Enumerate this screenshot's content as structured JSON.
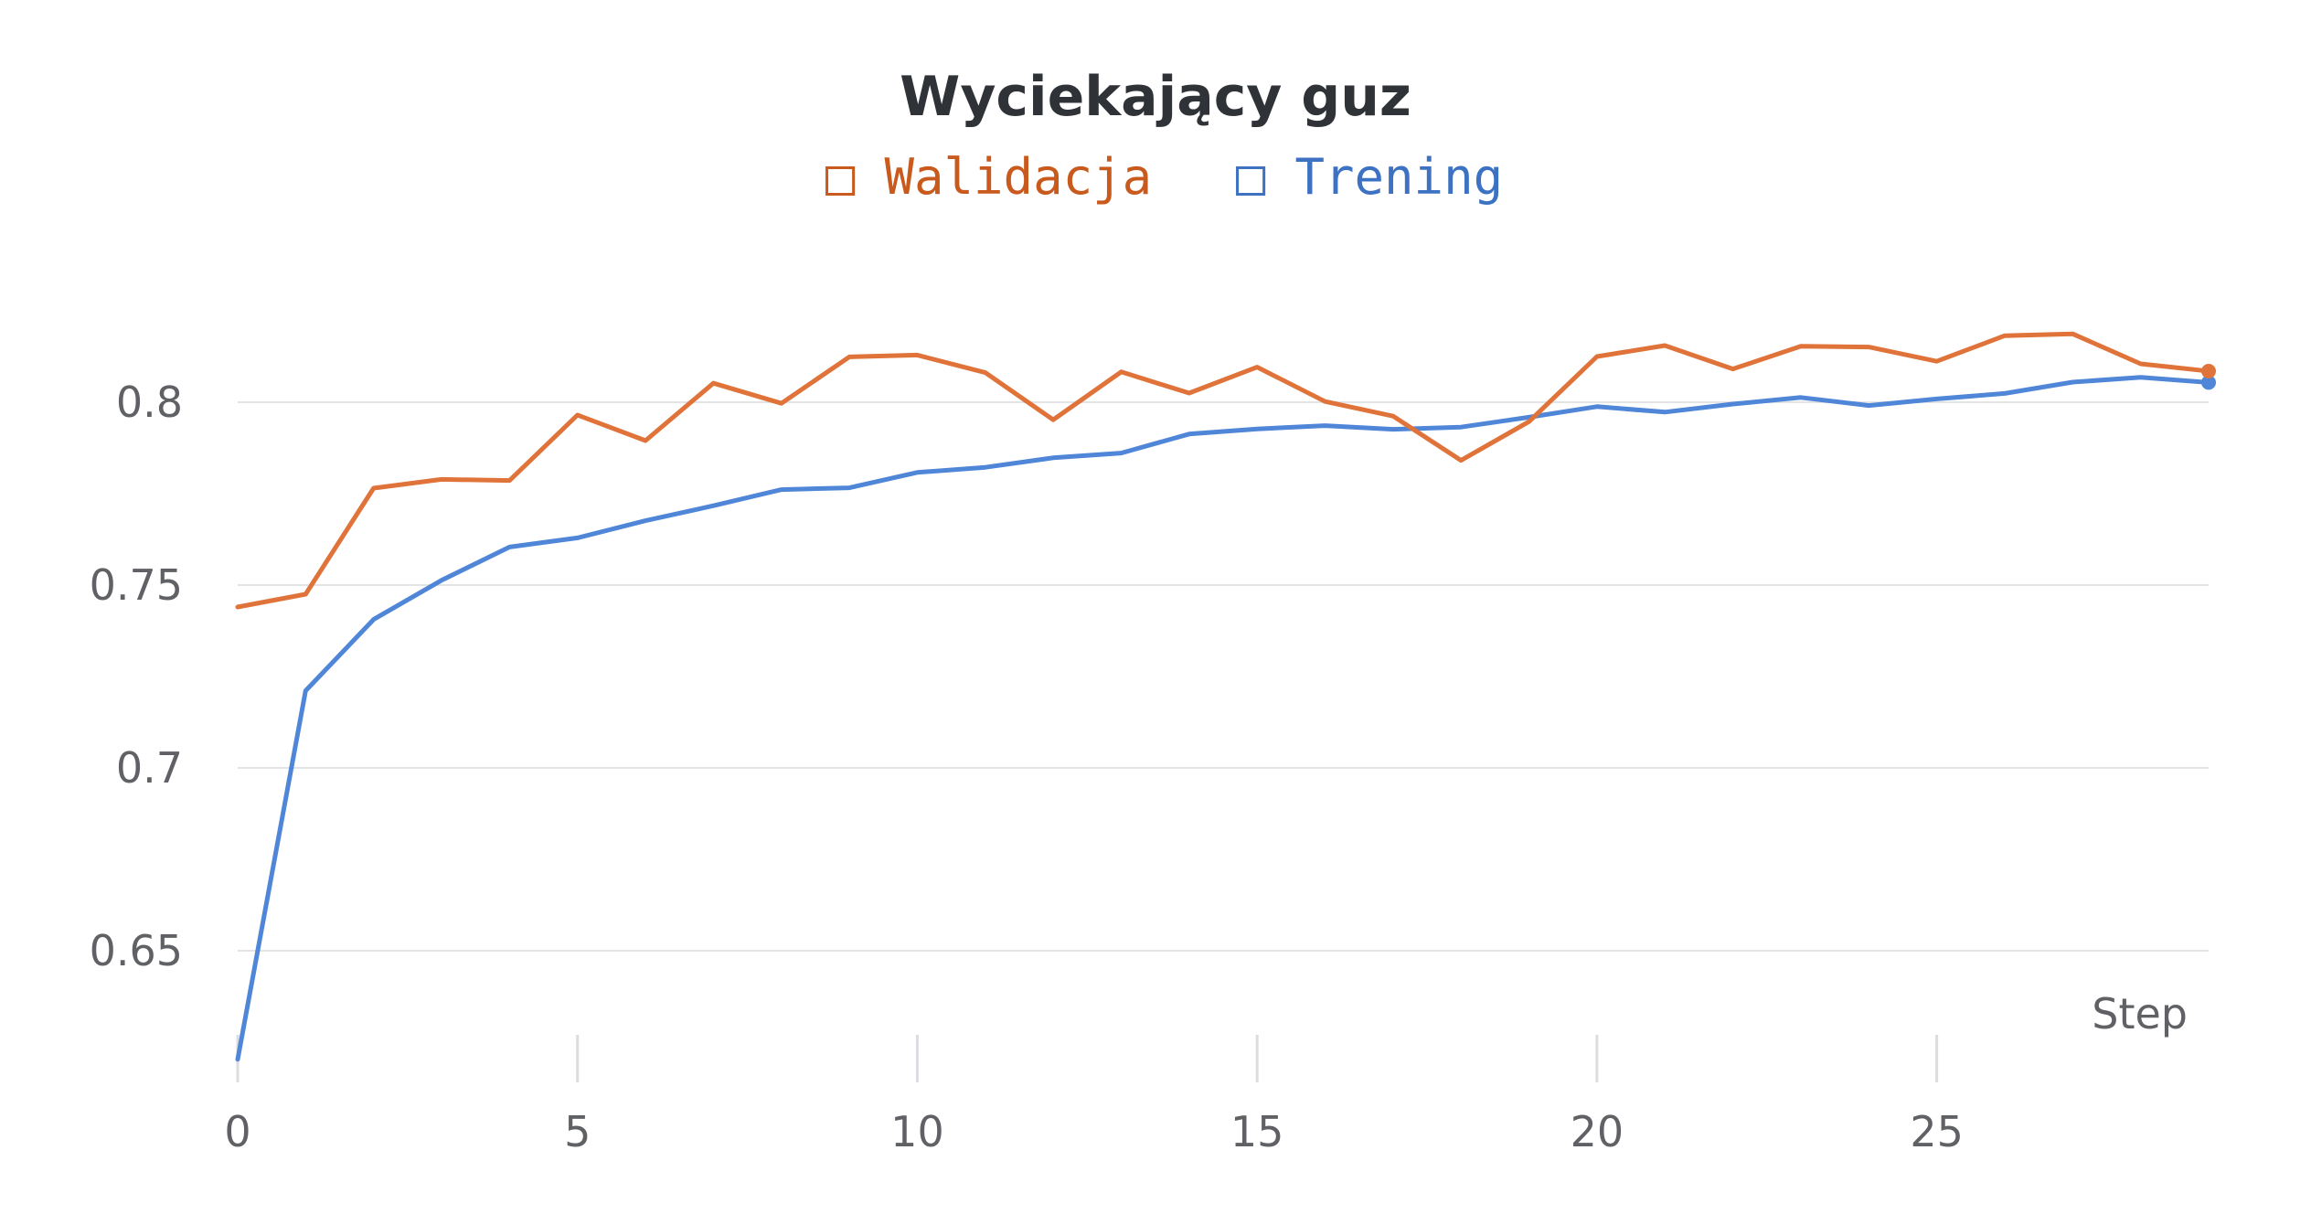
{
  "chart_data": {
    "type": "line",
    "title": "Wyciekający guz",
    "xlabel": "Step",
    "ylabel": "",
    "xlim": [
      0,
      29
    ],
    "ylim": [
      0.618,
      0.835
    ],
    "x_ticks": [
      0,
      5,
      10,
      15,
      20,
      25
    ],
    "x_tick_labels": [
      "0",
      "5",
      "10",
      "15",
      "20",
      "25"
    ],
    "y_ticks": [
      0.65,
      0.7,
      0.75,
      0.8
    ],
    "y_tick_labels": [
      "0.65",
      "0.7",
      "0.75",
      "0.8"
    ],
    "grid": "horizontal",
    "legend": {
      "placement": "top-center",
      "marker": "□"
    },
    "x": [
      0,
      1,
      2,
      3,
      4,
      5,
      6,
      7,
      8,
      9,
      10,
      11,
      12,
      13,
      14,
      15,
      16,
      17,
      18,
      19,
      20,
      21,
      22,
      23,
      24,
      25,
      26,
      27,
      28,
      29
    ],
    "series": [
      {
        "name": "Walidacja",
        "color": "#e07339",
        "label_color": "#c95a1e",
        "values": [
          0.744,
          0.7475,
          0.7765,
          0.7789,
          0.7786,
          0.7965,
          0.7895,
          0.8052,
          0.7997,
          0.8124,
          0.8129,
          0.8081,
          0.7952,
          0.8083,
          0.8025,
          0.8096,
          0.8002,
          0.7962,
          0.7841,
          0.7947,
          0.8125,
          0.8155,
          0.8091,
          0.8153,
          0.8151,
          0.8112,
          0.8182,
          0.8187,
          0.8105,
          0.8085
        ]
      },
      {
        "name": "Trening",
        "color": "#4f86d8",
        "label_color": "#3d72c2",
        "values": [
          0.6203,
          0.7211,
          0.7406,
          0.7513,
          0.7604,
          0.7629,
          0.7676,
          0.7717,
          0.7761,
          0.7766,
          0.7808,
          0.7822,
          0.7848,
          0.7861,
          0.7913,
          0.7927,
          0.7936,
          0.7926,
          0.7932,
          0.7959,
          0.7988,
          0.7973,
          0.7995,
          0.8013,
          0.7991,
          0.8009,
          0.8024,
          0.8055,
          0.8068,
          0.8054
        ]
      }
    ]
  }
}
